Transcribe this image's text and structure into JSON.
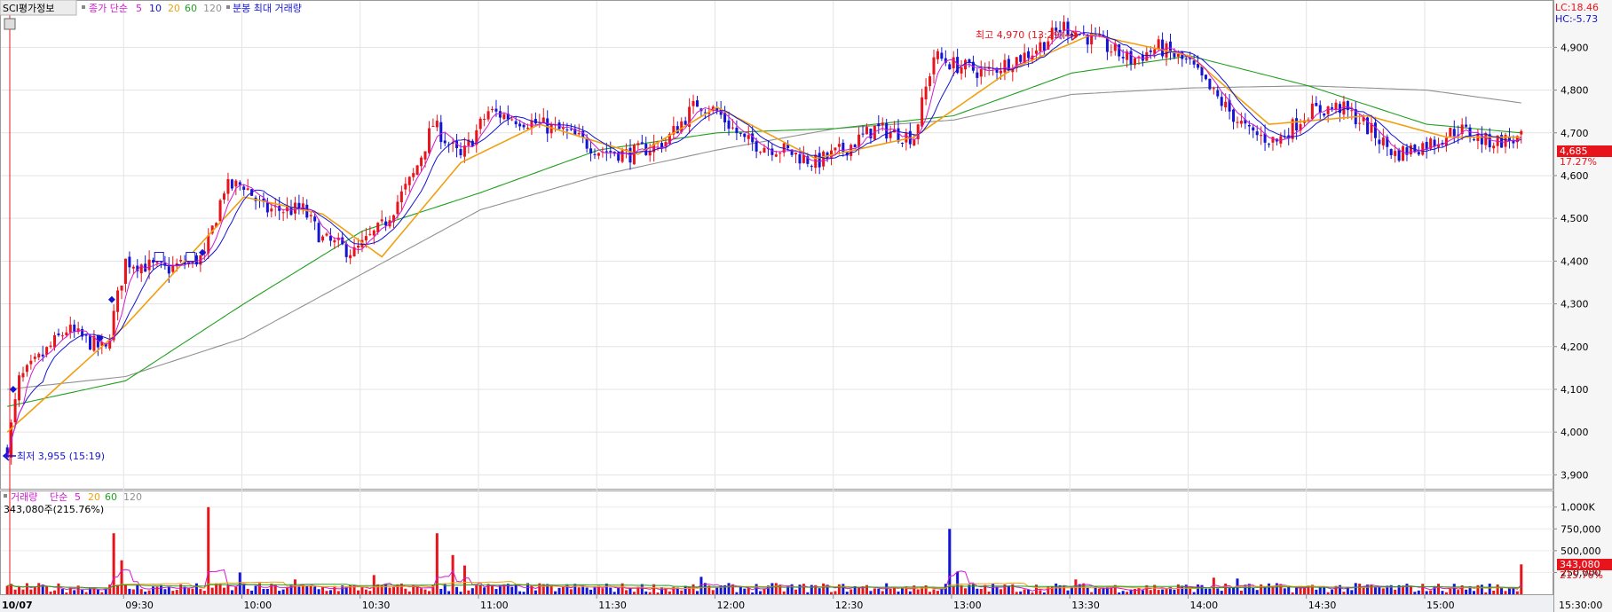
{
  "legend_price": {
    "stock_name": "SCI평가정보",
    "close_label": "종가 단순",
    "ma_periods": [
      "5",
      "10",
      "20",
      "60",
      "120"
    ],
    "extra_label": "분봉 최대 거래량"
  },
  "legend_volume": {
    "label": "거래량",
    "ma_type": "단순",
    "ma_periods": [
      "5",
      "20",
      "60",
      "120"
    ],
    "current": "343,080주(215.76%)"
  },
  "corner_info": {
    "lc": "LC:18.46",
    "hc": "HC:-5.73"
  },
  "annotations": {
    "high": "최고 4,970 (13:29)",
    "low": "최저 3,955 (15:19)"
  },
  "price_badge": {
    "price": "4,685",
    "pct": "17.27%"
  },
  "volume_badge": {
    "value": "343,080",
    "pct": "215.76%"
  },
  "bottom_bar": {
    "date": "10/07",
    "end_time": "15:30:00"
  },
  "colors": {
    "up": "#e8141c",
    "down": "#1414d2",
    "ma5": "#d11ad1",
    "ma10": "#1414d2",
    "ma20": "#f0a010",
    "ma60": "#20a020",
    "ma120": "#909090"
  },
  "chart_data": {
    "type": "candlestick",
    "interval": "1-minute",
    "date": "10/07",
    "y_ticks": [
      "3,900",
      "4,000",
      "4,100",
      "4,200",
      "4,300",
      "4,400",
      "4,500",
      "4,600",
      "4,700",
      "4,800",
      "4,900"
    ],
    "y_range": [
      3880,
      4990
    ],
    "x_ticks": [
      "09:30",
      "10:00",
      "10:30",
      "11:00",
      "11:30",
      "12:00",
      "12:30",
      "13:00",
      "13:30",
      "14:00",
      "14:30",
      "15:00"
    ],
    "x_range_minutes_from_0900": [
      0,
      385
    ],
    "close_path": [
      [
        0,
        3960
      ],
      [
        3,
        4120
      ],
      [
        8,
        4170
      ],
      [
        15,
        4240
      ],
      [
        25,
        4190
      ],
      [
        30,
        4400
      ],
      [
        40,
        4380
      ],
      [
        50,
        4410
      ],
      [
        55,
        4570
      ],
      [
        60,
        4580
      ],
      [
        65,
        4520
      ],
      [
        75,
        4520
      ],
      [
        80,
        4450
      ],
      [
        88,
        4420
      ],
      [
        95,
        4480
      ],
      [
        103,
        4600
      ],
      [
        108,
        4720
      ],
      [
        115,
        4640
      ],
      [
        122,
        4750
      ],
      [
        135,
        4720
      ],
      [
        142,
        4700
      ],
      [
        150,
        4660
      ],
      [
        158,
        4650
      ],
      [
        167,
        4680
      ],
      [
        175,
        4770
      ],
      [
        180,
        4750
      ],
      [
        187,
        4680
      ],
      [
        197,
        4660
      ],
      [
        205,
        4630
      ],
      [
        212,
        4660
      ],
      [
        220,
        4710
      ],
      [
        230,
        4690
      ],
      [
        235,
        4880
      ],
      [
        240,
        4860
      ],
      [
        248,
        4840
      ],
      [
        260,
        4890
      ],
      [
        268,
        4950
      ],
      [
        275,
        4920
      ],
      [
        285,
        4870
      ],
      [
        292,
        4900
      ],
      [
        300,
        4860
      ],
      [
        305,
        4800
      ],
      [
        315,
        4700
      ],
      [
        322,
        4680
      ],
      [
        330,
        4750
      ],
      [
        338,
        4760
      ],
      [
        343,
        4730
      ],
      [
        352,
        4650
      ],
      [
        362,
        4680
      ],
      [
        368,
        4710
      ],
      [
        375,
        4680
      ],
      [
        384,
        4685
      ]
    ],
    "ma_paths": {
      "ma20": [
        [
          0,
          4000
        ],
        [
          30,
          4250
        ],
        [
          60,
          4550
        ],
        [
          80,
          4510
        ],
        [
          95,
          4410
        ],
        [
          115,
          4630
        ],
        [
          135,
          4720
        ],
        [
          160,
          4650
        ],
        [
          180,
          4760
        ],
        [
          205,
          4640
        ],
        [
          230,
          4690
        ],
        [
          255,
          4850
        ],
        [
          275,
          4930
        ],
        [
          300,
          4880
        ],
        [
          320,
          4720
        ],
        [
          345,
          4740
        ],
        [
          365,
          4690
        ],
        [
          384,
          4690
        ]
      ],
      "ma60": [
        [
          0,
          4060
        ],
        [
          30,
          4120
        ],
        [
          60,
          4300
        ],
        [
          90,
          4470
        ],
        [
          120,
          4560
        ],
        [
          150,
          4660
        ],
        [
          180,
          4700
        ],
        [
          210,
          4710
        ],
        [
          240,
          4740
        ],
        [
          270,
          4840
        ],
        [
          300,
          4880
        ],
        [
          330,
          4810
        ],
        [
          360,
          4720
        ],
        [
          384,
          4700
        ]
      ],
      "ma120": [
        [
          0,
          4100
        ],
        [
          30,
          4130
        ],
        [
          60,
          4220
        ],
        [
          90,
          4370
        ],
        [
          120,
          4520
        ],
        [
          150,
          4600
        ],
        [
          180,
          4660
        ],
        [
          210,
          4710
        ],
        [
          240,
          4730
        ],
        [
          270,
          4790
        ],
        [
          300,
          4805
        ],
        [
          330,
          4810
        ],
        [
          360,
          4800
        ],
        [
          384,
          4770
        ]
      ]
    },
    "volume_y_ticks": [
      "1,000K",
      "750,000",
      "500,000",
      "250,000"
    ],
    "volume_y_range": [
      0,
      1150000
    ],
    "volume_spikes": [
      [
        3,
        90000
      ],
      [
        27,
        700000
      ],
      [
        29,
        390000
      ],
      [
        51,
        1000000
      ],
      [
        59,
        250000
      ],
      [
        73,
        170000
      ],
      [
        93,
        220000
      ],
      [
        109,
        700000
      ],
      [
        113,
        450000
      ],
      [
        116,
        330000
      ],
      [
        176,
        200000
      ],
      [
        239,
        750000
      ],
      [
        241,
        260000
      ],
      [
        271,
        170000
      ],
      [
        306,
        190000
      ],
      [
        312,
        180000
      ],
      [
        384,
        343080
      ]
    ],
    "annotations": [
      "최고 4,970 (13:29)",
      "최저 3,955 (15:19)"
    ]
  }
}
